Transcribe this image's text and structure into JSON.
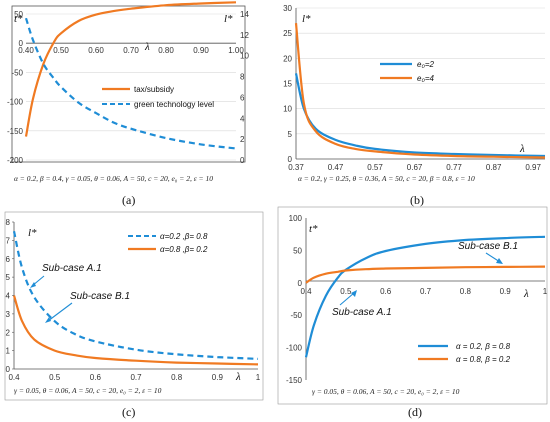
{
  "colors": {
    "orange": "#f07a22",
    "blue": "#1f8dd6",
    "axis": "#555555",
    "grid": "#d9d9d9"
  },
  "chart_data": [
    {
      "panel": "(a)",
      "type": "line",
      "xlabel": "λ",
      "ylabel_left": "t*",
      "ylabel_right": "l*",
      "x_ticks": [
        "0.40",
        "0.50",
        "0.60",
        "0.70",
        "0.80",
        "0.90",
        "1.00"
      ],
      "y_ticks_left": [
        "50",
        "0",
        "-50",
        "-100",
        "-150",
        "-200"
      ],
      "y_ticks_right": [
        "14",
        "12",
        "10",
        "8",
        "6",
        "4",
        "2",
        "0"
      ],
      "xlim": [
        0.4,
        1.0
      ],
      "ylim_left": [
        -200,
        50
      ],
      "ylim_right": [
        0,
        14
      ],
      "grid": "horizontal",
      "legend_position": "center-right",
      "series": [
        {
          "name": "tax/subsidy",
          "axis": "left",
          "style": "solid",
          "color": "orange",
          "x": [
            0.4,
            0.42,
            0.45,
            0.48,
            0.5,
            0.55,
            0.6,
            0.65,
            0.7,
            0.8,
            0.9,
            1.0
          ],
          "y": [
            -160,
            -95,
            -35,
            2,
            17,
            38,
            49,
            55,
            59,
            65,
            68,
            70
          ]
        },
        {
          "name": "green technology level",
          "axis": "right",
          "style": "dashed",
          "color": "blue",
          "x": [
            0.4,
            0.42,
            0.45,
            0.48,
            0.5,
            0.55,
            0.6,
            0.65,
            0.7,
            0.8,
            0.9,
            1.0
          ],
          "y": [
            13.6,
            11.5,
            9.2,
            7.8,
            7.0,
            5.5,
            4.5,
            3.6,
            3.0,
            2.1,
            1.5,
            1.1
          ]
        }
      ],
      "caption": "α = 0.2, β = 0.4, γ = 0.05, θ = 0.06, A = 50, c = 20, e₀ = 2, ε = 10"
    },
    {
      "panel": "(b)",
      "type": "line",
      "xlabel": "λ",
      "ylabel": "l*",
      "x_ticks": [
        "0.37",
        "0.47",
        "0.57",
        "0.67",
        "0.77",
        "0.87",
        "0.97"
      ],
      "y_ticks": [
        "30",
        "25",
        "20",
        "15",
        "10",
        "5",
        "0"
      ],
      "xlim": [
        0.37,
        1.0
      ],
      "ylim": [
        0,
        30
      ],
      "grid": "horizontal",
      "legend_position": "top-right",
      "series": [
        {
          "name": "e₀=2",
          "style": "solid",
          "color": "blue",
          "x": [
            0.37,
            0.39,
            0.42,
            0.47,
            0.52,
            0.57,
            0.67,
            0.77,
            0.87,
            1.0
          ],
          "y": [
            17,
            10,
            6,
            3.8,
            2.7,
            2.0,
            1.3,
            1.0,
            0.8,
            0.6
          ]
        },
        {
          "name": "e₀=4",
          "style": "solid",
          "color": "orange",
          "x": [
            0.37,
            0.39,
            0.42,
            0.47,
            0.52,
            0.57,
            0.67,
            0.77,
            0.87,
            1.0
          ],
          "y": [
            27,
            11,
            5.5,
            3.0,
            2.0,
            1.5,
            0.9,
            0.6,
            0.45,
            0.3
          ]
        }
      ],
      "caption": "α = 0.2, γ = 0.25, θ = 0.36, A = 50, c = 20, β = 0.8, ε = 10"
    },
    {
      "panel": "(c)",
      "type": "line",
      "xlabel": "λ",
      "ylabel": "l*",
      "x_ticks": [
        "0.4",
        "0.5",
        "0.6",
        "0.7",
        "0.8",
        "0.9",
        "1"
      ],
      "y_ticks": [
        "8",
        "7",
        "6",
        "5",
        "4",
        "3",
        "2",
        "1",
        "0"
      ],
      "xlim": [
        0.4,
        1.0
      ],
      "ylim": [
        0,
        8
      ],
      "grid": "none",
      "legend_position": "top-right",
      "series": [
        {
          "name": "α=0.2 ,β= 0.8",
          "style": "dashed",
          "color": "blue",
          "x": [
            0.4,
            0.42,
            0.45,
            0.5,
            0.55,
            0.6,
            0.7,
            0.8,
            0.9,
            1.0
          ],
          "y": [
            7.5,
            5.5,
            3.9,
            2.6,
            1.9,
            1.5,
            1.05,
            0.8,
            0.65,
            0.55
          ]
        },
        {
          "name": "α=0.8 ,β= 0.2",
          "style": "solid",
          "color": "orange",
          "x": [
            0.4,
            0.42,
            0.45,
            0.5,
            0.55,
            0.6,
            0.7,
            0.8,
            0.9,
            1.0
          ],
          "y": [
            4.0,
            2.6,
            1.6,
            1.0,
            0.75,
            0.6,
            0.45,
            0.35,
            0.3,
            0.25
          ]
        }
      ],
      "annotations": [
        "Sub-case A.1",
        "Sub-case B.1"
      ],
      "caption": "γ = 0.05, θ = 0.06, A = 50, c = 20, e₀ = 2, ε = 10"
    },
    {
      "panel": "(d)",
      "type": "line",
      "xlabel": "λ",
      "ylabel": "t*",
      "x_ticks": [
        "0.4",
        "0.5",
        "0.6",
        "0.7",
        "0.8",
        "0.9",
        "1"
      ],
      "y_ticks": [
        "100",
        "50",
        "0",
        "-50",
        "-100",
        "-150"
      ],
      "xlim": [
        0.4,
        1.0
      ],
      "ylim": [
        -150,
        100
      ],
      "grid": "none",
      "legend_position": "bottom-right",
      "series": [
        {
          "name": "α = 0.2, β = 0.8",
          "style": "solid",
          "color": "blue",
          "x": [
            0.4,
            0.42,
            0.45,
            0.48,
            0.5,
            0.55,
            0.6,
            0.7,
            0.8,
            0.9,
            1.0
          ],
          "y": [
            -115,
            -65,
            -20,
            8,
            20,
            38,
            49,
            60,
            66,
            69,
            71
          ]
        },
        {
          "name": "α = 0.8, β = 0.2",
          "style": "solid",
          "color": "orange",
          "x": [
            0.4,
            0.42,
            0.45,
            0.48,
            0.5,
            0.55,
            0.6,
            0.7,
            0.8,
            0.9,
            1.0
          ],
          "y": [
            0,
            8,
            14,
            17,
            19,
            21,
            22,
            23,
            24,
            24.5,
            25
          ]
        }
      ],
      "annotations": [
        "Sub-case B.1",
        "Sub-case A.1"
      ],
      "caption": "γ = 0.05, θ = 0.06, A = 50, c = 20, e₀ = 2, ε = 10"
    }
  ]
}
